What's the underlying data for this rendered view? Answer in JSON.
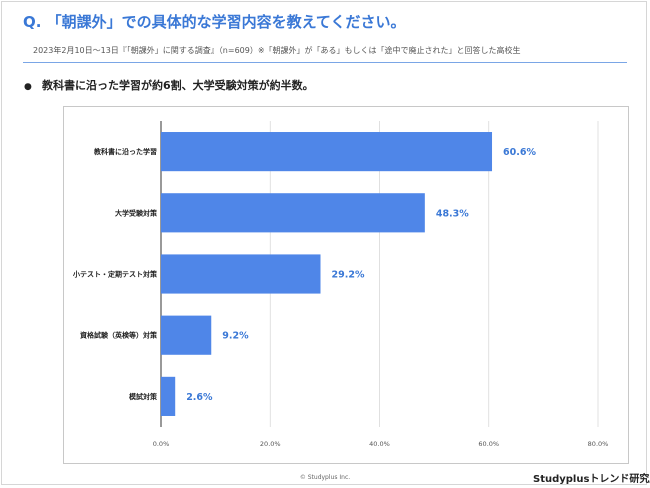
{
  "header": {
    "title": "Q. 「朝課外」での具体的な学習内容を教えてください。",
    "subtitle": "2023年2月10日〜13日『「朝課外」に関する調査』（n=609）※「朝課外」が「ある」もしくは「途中で廃止された」と回答した高校生"
  },
  "summary": {
    "bullet": "●",
    "text": "教科書に沿った学習が約6割、大学受験対策が約半数。"
  },
  "chart_data": {
    "type": "bar",
    "orientation": "horizontal",
    "categories": [
      "教科書に沿った学習",
      "大学受験対策",
      "小テスト・定期テスト対策",
      "資格試験（英検等）対策",
      "模試対策"
    ],
    "values": [
      60.6,
      48.3,
      29.2,
      9.2,
      2.6
    ],
    "value_labels": [
      "60.6%",
      "48.3%",
      "29.2%",
      "9.2%",
      "2.6%"
    ],
    "x_ticks": [
      0,
      20,
      40,
      60,
      80
    ],
    "x_tick_labels": [
      "0.0%",
      "20.0%",
      "40.0%",
      "60.0%",
      "80.0%"
    ],
    "xlim": [
      0,
      80
    ],
    "grid": true,
    "bar_color": "#4f86e8",
    "label_color": "#3a78d6"
  },
  "footer": {
    "copyright": "© Studyplus Inc.",
    "brand": "Studyplusトレンド研究所"
  }
}
